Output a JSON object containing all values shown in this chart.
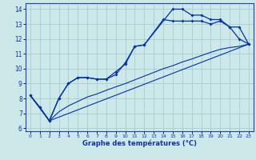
{
  "background_color": "#cce8e8",
  "grid_color": "#aacccc",
  "line_color": "#0033aa",
  "xlabel": "Graphe des températures (°C)",
  "xlim": [
    -0.5,
    23.5
  ],
  "ylim": [
    5.8,
    14.4
  ],
  "yticks": [
    6,
    7,
    8,
    9,
    10,
    11,
    12,
    13,
    14
  ],
  "xticks": [
    0,
    1,
    2,
    3,
    4,
    5,
    6,
    7,
    8,
    9,
    10,
    11,
    12,
    13,
    14,
    15,
    16,
    17,
    18,
    19,
    20,
    21,
    22,
    23
  ],
  "curve1_x": [
    0,
    1,
    2,
    3,
    4,
    5,
    6,
    7,
    8,
    9,
    10,
    11,
    12,
    15,
    16,
    17,
    18,
    19,
    20,
    21,
    22,
    23
  ],
  "curve1_y": [
    8.2,
    7.4,
    6.5,
    8.0,
    9.0,
    9.4,
    9.4,
    9.3,
    9.3,
    9.8,
    10.3,
    11.5,
    11.6,
    14.0,
    14.0,
    13.6,
    13.6,
    13.3,
    13.3,
    12.8,
    12.8,
    11.65
  ],
  "curve2_x": [
    0,
    1,
    2,
    3,
    4,
    5,
    6,
    7,
    8,
    9,
    10,
    11,
    12,
    14,
    15,
    16,
    17,
    18,
    19,
    20,
    21,
    22,
    23
  ],
  "curve2_y": [
    8.2,
    7.4,
    6.5,
    8.0,
    9.0,
    9.4,
    9.4,
    9.3,
    9.3,
    9.6,
    10.4,
    11.5,
    11.6,
    13.3,
    13.2,
    13.2,
    13.2,
    13.2,
    13.0,
    13.2,
    12.8,
    12.0,
    11.65
  ],
  "curve3_x": [
    0,
    2,
    3,
    4,
    5,
    6,
    7,
    8,
    9,
    10,
    11,
    12,
    13,
    14,
    15,
    16,
    17,
    18,
    19,
    20,
    21,
    22,
    23
  ],
  "curve3_y": [
    8.2,
    6.5,
    7.1,
    7.5,
    7.8,
    8.1,
    8.3,
    8.55,
    8.78,
    9.0,
    9.25,
    9.5,
    9.75,
    10.0,
    10.2,
    10.45,
    10.65,
    10.88,
    11.1,
    11.3,
    11.42,
    11.5,
    11.65
  ],
  "curve4_x": [
    0,
    2,
    23
  ],
  "curve4_y": [
    8.2,
    6.5,
    11.65
  ]
}
